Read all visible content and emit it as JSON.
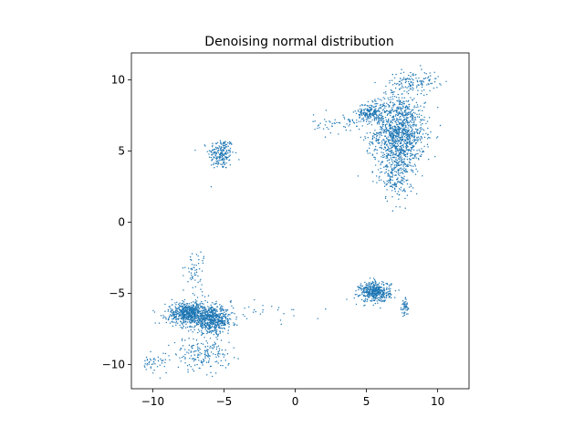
{
  "chart_data": {
    "type": "scatter",
    "title": "Denoising normal distribution",
    "xlabel": "",
    "ylabel": "",
    "xlim": [
      -11.5,
      12.2
    ],
    "ylim": [
      -11.7,
      11.9
    ],
    "xticks": [
      -10,
      -5,
      0,
      5,
      10
    ],
    "yticks": [
      -10,
      -5,
      0,
      5,
      10
    ],
    "xtick_labels": [
      "−10",
      "−5",
      "0",
      "5",
      "10"
    ],
    "ytick_labels": [
      "−10",
      "−5",
      "0",
      "5",
      "10"
    ],
    "grid": false,
    "marker_color": "#1f77b4",
    "clusters": [
      {
        "cx": -5.2,
        "cy": 4.8,
        "sx": 0.45,
        "sy": 0.55,
        "n": 200
      },
      {
        "cx": 7.3,
        "cy": 6.2,
        "sx": 0.9,
        "sy": 1.4,
        "n": 1200
      },
      {
        "cx": 5.3,
        "cy": 7.7,
        "sx": 0.5,
        "sy": 0.35,
        "n": 200
      },
      {
        "cx": 8.3,
        "cy": 9.9,
        "sx": 0.9,
        "sy": 0.35,
        "n": 120
      },
      {
        "cx": 7.0,
        "cy": 3.2,
        "sx": 0.5,
        "sy": 0.9,
        "n": 150
      },
      {
        "cx": 3.3,
        "cy": 6.9,
        "sx": 1.0,
        "sy": 0.35,
        "n": 60
      },
      {
        "cx": -7.4,
        "cy": -6.4,
        "sx": 0.8,
        "sy": 0.4,
        "n": 650
      },
      {
        "cx": -5.8,
        "cy": -6.9,
        "sx": 0.7,
        "sy": 0.45,
        "n": 550
      },
      {
        "cx": -6.6,
        "cy": -9.3,
        "sx": 1.0,
        "sy": 0.55,
        "n": 180
      },
      {
        "cx": -10.0,
        "cy": -9.9,
        "sx": 0.5,
        "sy": 0.3,
        "n": 40
      },
      {
        "cx": -7.0,
        "cy": -3.5,
        "sx": 0.35,
        "sy": 0.8,
        "n": 60
      },
      {
        "cx": 5.6,
        "cy": -4.9,
        "sx": 0.55,
        "sy": 0.35,
        "n": 450
      },
      {
        "cx": 7.7,
        "cy": -6.0,
        "sx": 0.12,
        "sy": 0.3,
        "n": 50
      },
      {
        "cx": -2.0,
        "cy": -6.3,
        "sx": 1.4,
        "sy": 0.35,
        "n": 25
      }
    ]
  }
}
